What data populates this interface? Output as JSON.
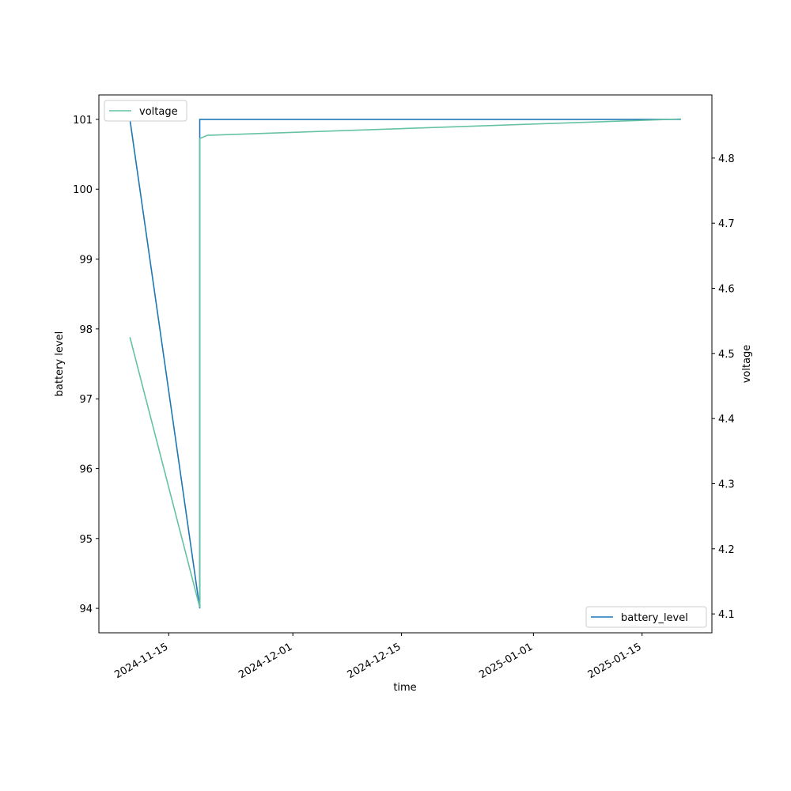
{
  "chart_data": {
    "type": "line",
    "xlabel": "time",
    "ylabel": "battery level",
    "y2label": "voltage",
    "xlim": [
      "2024-11-06",
      "2025-01-24"
    ],
    "xticks": [
      "2024-11-15",
      "2024-12-01",
      "2024-12-15",
      "2025-01-01",
      "2025-01-15"
    ],
    "ylim": [
      93.65,
      101.35
    ],
    "yticks": [
      94,
      95,
      96,
      97,
      98,
      99,
      100,
      101
    ],
    "y2lim": [
      4.071,
      4.897
    ],
    "y2ticks": [
      4.1,
      4.2,
      4.3,
      4.4,
      4.5,
      4.6,
      4.7,
      4.8
    ],
    "grid": false,
    "legend": "lower right",
    "y2legend": "upper left",
    "series": [
      {
        "name": "battery_level",
        "color": "#1f77b4",
        "x": [
          "2024-11-10",
          "2024-11-19",
          "2024-11-19",
          "2025-01-20"
        ],
        "values": [
          101,
          94,
          101,
          101
        ]
      },
      {
        "name": "voltage",
        "color": "#66c2a5",
        "axis": "y2",
        "x": [
          "2024-11-10",
          "2024-11-19",
          "2024-11-19",
          "2024-11-20",
          "2025-01-20"
        ],
        "values": [
          4.525,
          4.11,
          4.83,
          4.835,
          4.86
        ]
      }
    ]
  }
}
